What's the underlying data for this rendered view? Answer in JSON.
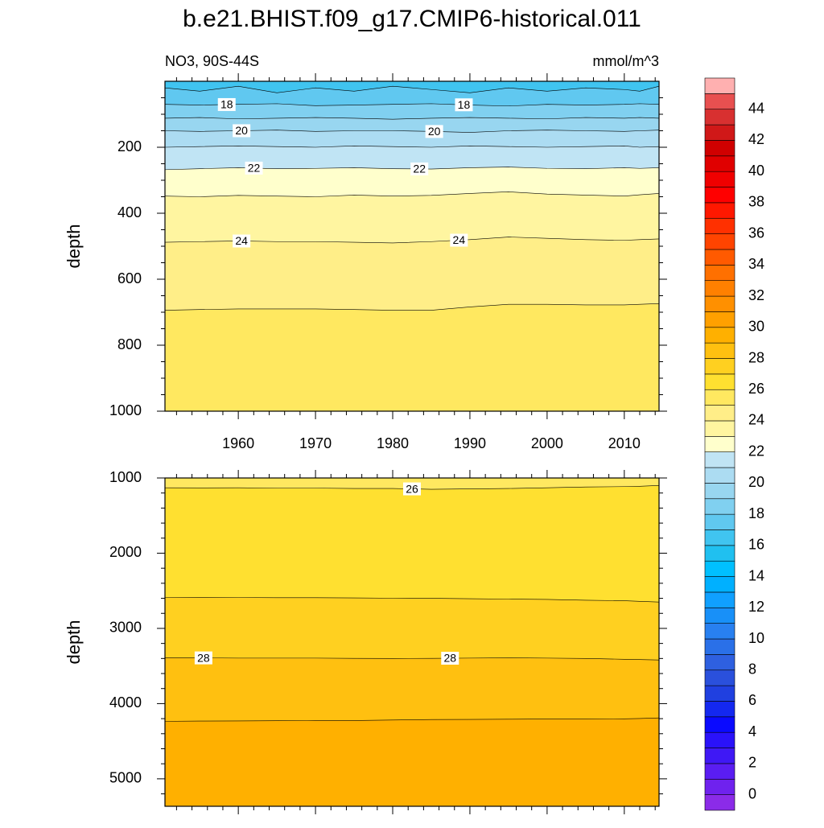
{
  "chart_data": [
    {
      "type": "contour",
      "title": "b.e21.BHIST.f09_g17.CMIP6-historical.011",
      "subtitle_left": "NO3, 90S-44S",
      "subtitle_right": "mmol/m^3",
      "ylabel": "depth",
      "x": [
        1950.5,
        1955,
        1960,
        1965,
        1970,
        1975,
        1980,
        1985,
        1990,
        1995,
        2000,
        2005,
        2010,
        2012,
        2014.5
      ],
      "xlim": [
        1950.5,
        2014.5
      ],
      "xticks": [
        1960,
        1970,
        1980,
        1990,
        2000,
        2010
      ],
      "xminorticks": [
        1952,
        1954,
        1956,
        1958,
        1962,
        1964,
        1966,
        1968,
        1972,
        1974,
        1976,
        1978,
        1982,
        1984,
        1986,
        1988,
        1992,
        1994,
        1996,
        1998,
        2002,
        2004,
        2006,
        2008,
        2012,
        2014
      ],
      "show_xtick_labels": true,
      "ylim": [
        0,
        1000
      ],
      "yticks": [
        200,
        400,
        600,
        800,
        1000
      ],
      "yminorticks": [
        50,
        100,
        150,
        250,
        300,
        350,
        450,
        500,
        550,
        650,
        700,
        750,
        850,
        900,
        950
      ],
      "contours": [
        {
          "level": 17,
          "depths": [
            20,
            30,
            15,
            35,
            20,
            30,
            15,
            25,
            35,
            20,
            30,
            20,
            25,
            30,
            15
          ]
        },
        {
          "level": 18,
          "depths": [
            70,
            72,
            70,
            68,
            74,
            72,
            70,
            68,
            72,
            75,
            70,
            72,
            70,
            68,
            70
          ]
        },
        {
          "level": 19,
          "depths": [
            112,
            110,
            114,
            112,
            110,
            112,
            115,
            112,
            110,
            112,
            114,
            110,
            112,
            110,
            112
          ]
        },
        {
          "level": 20,
          "depths": [
            150,
            152,
            150,
            148,
            152,
            150,
            150,
            152,
            155,
            150,
            148,
            150,
            152,
            150,
            148
          ]
        },
        {
          "level": 21,
          "depths": [
            200,
            198,
            196,
            198,
            200,
            196,
            198,
            200,
            196,
            198,
            200,
            198,
            196,
            200,
            198
          ]
        },
        {
          "level": 22,
          "depths": [
            268,
            265,
            262,
            265,
            264,
            262,
            265,
            266,
            262,
            260,
            264,
            265,
            262,
            264,
            262
          ]
        },
        {
          "level": 23,
          "depths": [
            348,
            350,
            346,
            348,
            350,
            345,
            348,
            346,
            340,
            335,
            342,
            345,
            348,
            344,
            340
          ]
        },
        {
          "level": 24,
          "depths": [
            488,
            486,
            484,
            486,
            486,
            488,
            490,
            486,
            480,
            472,
            476,
            480,
            482,
            480,
            478
          ]
        },
        {
          "level": 25,
          "depths": [
            694,
            692,
            690,
            690,
            690,
            692,
            694,
            694,
            684,
            676,
            676,
            678,
            678,
            676,
            674
          ]
        }
      ]
    },
    {
      "type": "contour",
      "ylabel": "depth",
      "x": [
        1950.5,
        1955,
        1960,
        1965,
        1970,
        1975,
        1980,
        1985,
        1990,
        1995,
        2000,
        2005,
        2010,
        2012,
        2014.5
      ],
      "xlim": [
        1950.5,
        2014.5
      ],
      "xticks": [
        1960,
        1970,
        1980,
        1990,
        2000,
        2010
      ],
      "xminorticks": [
        1952,
        1954,
        1956,
        1958,
        1962,
        1964,
        1966,
        1968,
        1972,
        1974,
        1976,
        1978,
        1982,
        1984,
        1986,
        1988,
        1992,
        1994,
        1996,
        1998,
        2002,
        2004,
        2006,
        2008,
        2012,
        2014
      ],
      "show_xtick_labels": false,
      "ylim": [
        1000,
        5365
      ],
      "yticks": [
        1000,
        2000,
        3000,
        4000,
        5000
      ],
      "yminorticks": [
        1200,
        1400,
        1600,
        1800,
        2200,
        2400,
        2600,
        2800,
        3200,
        3400,
        3600,
        3800,
        4200,
        4400,
        4600,
        4800,
        5200
      ],
      "contours": [
        {
          "level": 26,
          "depths": [
            1130,
            1132,
            1130,
            1135,
            1135,
            1140,
            1140,
            1150,
            1145,
            1140,
            1130,
            1120,
            1115,
            1110,
            1100
          ]
        },
        {
          "level": 27,
          "depths": [
            2590,
            2588,
            2590,
            2592,
            2592,
            2595,
            2598,
            2600,
            2605,
            2610,
            2615,
            2625,
            2632,
            2640,
            2650
          ]
        },
        {
          "level": 28,
          "depths": [
            3390,
            3392,
            3395,
            3395,
            3395,
            3398,
            3400,
            3398,
            3395,
            3392,
            3395,
            3400,
            3410,
            3415,
            3420
          ]
        },
        {
          "level": 29,
          "depths": [
            4235,
            4232,
            4230,
            4228,
            4225,
            4225,
            4218,
            4212,
            4210,
            4208,
            4205,
            4205,
            4202,
            4198,
            4190
          ]
        }
      ]
    },
    {
      "type": "colorbar",
      "ylim": [
        -1,
        46
      ],
      "yticks": [
        0,
        2,
        4,
        6,
        8,
        10,
        12,
        14,
        16,
        18,
        20,
        22,
        24,
        26,
        28,
        30,
        32,
        34,
        36,
        38,
        40,
        42,
        44
      ],
      "colors": [
        "#8b2be8",
        "#6f22ee",
        "#5a1df2",
        "#3f18f5",
        "#2a12fa",
        "#0a0aff",
        "#1428f0",
        "#2040e0",
        "#2a50dc",
        "#2e60e0",
        "#2a70e8",
        "#2880f0",
        "#1890f8",
        "#10a0ff",
        "#00b0ff",
        "#00c0ff",
        "#20c0f0",
        "#40c4f0",
        "#60c8f0",
        "#80d0f0",
        "#98d6f0",
        "#acdcf2",
        "#c0e4f4",
        "#ffffcc",
        "#fff5a0",
        "#ffee88",
        "#ffe860",
        "#ffe030",
        "#ffd020",
        "#ffc010",
        "#ffb000",
        "#ffa000",
        "#ff9000",
        "#ff8000",
        "#ff7000",
        "#ff5a00",
        "#ff4400",
        "#ff3000",
        "#ff1800",
        "#ff0000",
        "#f00000",
        "#e00000",
        "#d00000",
        "#d01818",
        "#d83030",
        "#e85050",
        "#ffb0b0"
      ]
    }
  ]
}
